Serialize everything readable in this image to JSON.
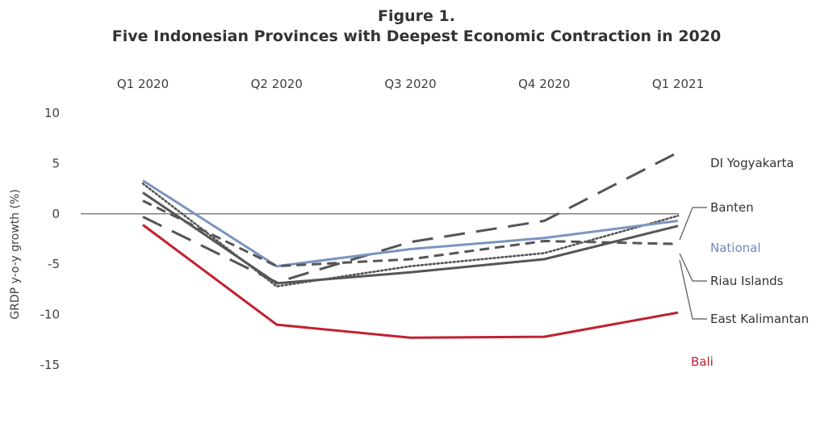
{
  "chart_data": {
    "type": "line",
    "title": "Figure 1.",
    "subtitle": "Five Indonesian Provinces with Deepest Economic Contraction in 2020",
    "xlabel": "",
    "ylabel": "GRDP y-o-y growth (%)",
    "categories": [
      "Q1 2020",
      "Q2 2020",
      "Q3 2020",
      "Q4 2020",
      "Q1 2021"
    ],
    "x_axis_position": "top",
    "ylim": [
      -15,
      10
    ],
    "yticks": [
      10,
      5,
      0,
      -5,
      -10,
      -15
    ],
    "grid": false,
    "zero_line": true,
    "legend": "direct labels at line ends (right)",
    "series": [
      {
        "name": "DI Yogyakarta",
        "values": [
          -0.3,
          -6.8,
          -2.8,
          -0.7,
          6.1
        ],
        "color": "#555555",
        "style": "long-dash"
      },
      {
        "name": "Banten",
        "values": [
          3.0,
          -7.2,
          -5.2,
          -3.9,
          -0.2
        ],
        "color": "#555555",
        "style": "dotted"
      },
      {
        "name": "National",
        "values": [
          3.3,
          -5.2,
          -3.5,
          -2.4,
          -0.7
        ],
        "color": "#7b95bf",
        "style": "solid"
      },
      {
        "name": "Riau Islands",
        "values": [
          1.3,
          -5.2,
          -4.5,
          -2.7,
          -3.0
        ],
        "color": "#555555",
        "style": "short-dash"
      },
      {
        "name": "East Kalimantan",
        "values": [
          2.1,
          -6.9,
          -5.8,
          -4.5,
          -1.2
        ],
        "color": "#555555",
        "style": "solid"
      },
      {
        "name": "Bali",
        "values": [
          -1.1,
          -11.0,
          -12.3,
          -12.2,
          -9.8
        ],
        "color": "#c0212f",
        "style": "solid"
      }
    ]
  }
}
